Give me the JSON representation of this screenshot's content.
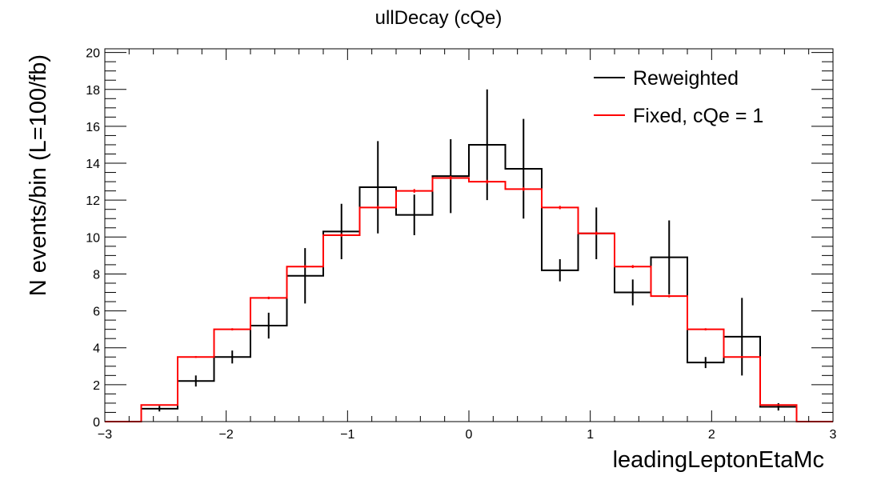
{
  "chart_data": {
    "type": "histogram",
    "title": "ullDecay (cQe)",
    "xlabel": "leadingLeptonEtaMc",
    "ylabel": "N events/bin (L=100/fb)",
    "xlim": [
      -3,
      3
    ],
    "ylim": [
      0,
      20.2
    ],
    "x_ticks": [
      -3,
      -2,
      -1,
      0,
      1,
      2,
      3
    ],
    "x_tick_labels": [
      "−3",
      "−2",
      "−1",
      "0",
      "1",
      "2",
      "3"
    ],
    "y_ticks": [
      0,
      2,
      4,
      6,
      8,
      10,
      12,
      14,
      16,
      18,
      20
    ],
    "y_tick_labels": [
      "0",
      "2",
      "4",
      "6",
      "8",
      "10",
      "12",
      "14",
      "16",
      "18",
      "20"
    ],
    "bin_edges": [
      -3.0,
      -2.7,
      -2.4,
      -2.1,
      -1.8,
      -1.5,
      -1.2,
      -0.9,
      -0.6,
      -0.3,
      0.0,
      0.3,
      0.6,
      0.9,
      1.2,
      1.5,
      1.8,
      2.1,
      2.4,
      2.7,
      3.0
    ],
    "legend_position": "top-right",
    "grid": false,
    "series": [
      {
        "name": "Reweighted",
        "color": "#000000",
        "values": [
          0,
          0.7,
          2.2,
          3.5,
          5.2,
          7.9,
          10.3,
          12.7,
          11.2,
          13.3,
          15.0,
          13.7,
          8.2,
          10.2,
          7.0,
          8.9,
          3.2,
          4.6,
          0.8,
          0
        ],
        "errors": [
          0,
          0.15,
          0.3,
          0.35,
          0.7,
          1.5,
          1.5,
          2.5,
          1.1,
          2.0,
          3.0,
          2.7,
          0.6,
          1.4,
          0.7,
          2.0,
          0.3,
          2.1,
          0.2,
          0
        ]
      },
      {
        "name": "Fixed, cQe = 1",
        "color": "#ff0000",
        "values": [
          0,
          0.9,
          3.5,
          5.0,
          6.7,
          8.4,
          10.1,
          11.6,
          12.5,
          13.2,
          13.0,
          12.6,
          11.6,
          10.2,
          8.4,
          6.8,
          5.0,
          3.5,
          0.9,
          0
        ],
        "errors": [
          0,
          0.03,
          0.05,
          0.06,
          0.07,
          0.08,
          0.09,
          0.09,
          0.1,
          0.1,
          0.1,
          0.1,
          0.09,
          0.09,
          0.08,
          0.07,
          0.06,
          0.05,
          0.03,
          0
        ]
      }
    ]
  }
}
